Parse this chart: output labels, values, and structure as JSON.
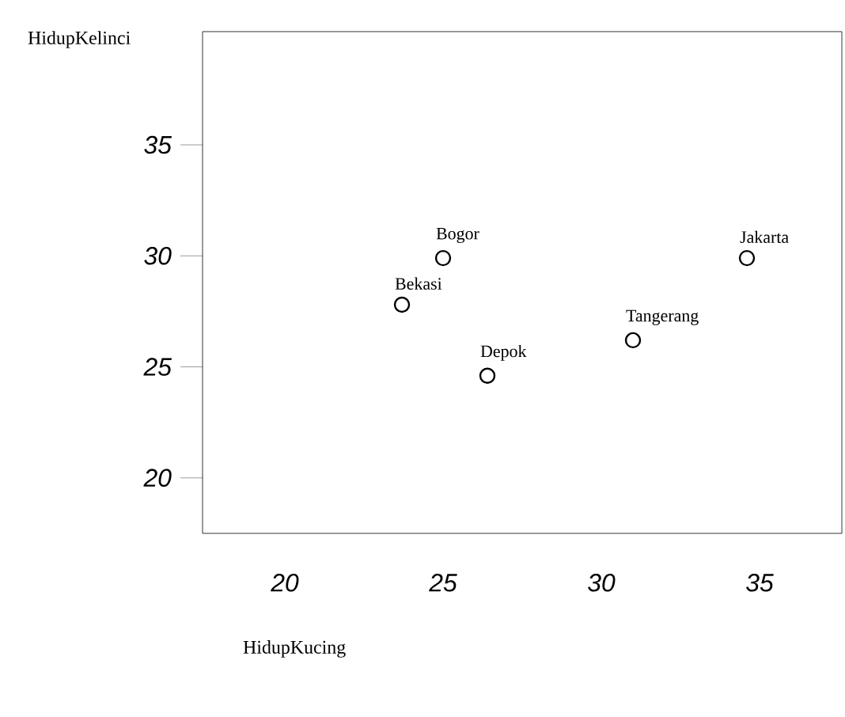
{
  "chart_data": {
    "type": "scatter",
    "xlabel": "HidupKucing",
    "ylabel": "HidupKelinci",
    "x": [
      25,
      23.7,
      26.4,
      31,
      34.6
    ],
    "series": [
      {
        "color": "#000000",
        "values": [
          29.9,
          27.8,
          24.6,
          26.2,
          29.9
        ]
      }
    ],
    "annotations": [
      {
        "text": "Bogor",
        "x": 25,
        "y": 29.9
      },
      {
        "text": "Bekasi",
        "x": 23.7,
        "y": 27.8
      },
      {
        "text": "Depok",
        "x": 26.4,
        "y": 24.6
      },
      {
        "text": "Tangerang",
        "x": 31,
        "y": 26.2
      },
      {
        "text": "Jakarta",
        "x": 34.6,
        "y": 29.9
      }
    ],
    "xlim": [
      17.4,
      37.6
    ],
    "ylim": [
      17.5,
      40.1
    ],
    "xticks": [
      20,
      25,
      30,
      35
    ],
    "yticks": [
      20,
      25,
      30,
      35
    ],
    "marker": "circle"
  }
}
